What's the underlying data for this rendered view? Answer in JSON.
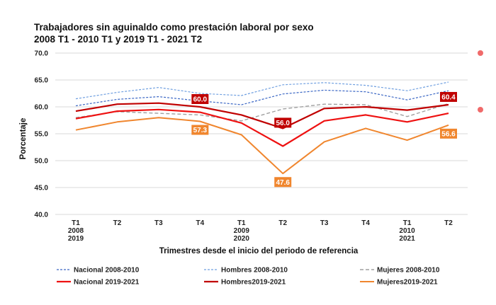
{
  "chart_data": {
    "type": "line",
    "title_line1": "Trabajadores sin aguinaldo como prestación laboral por sexo",
    "title_line2": "2008 T1 - 2010 T1 y 2019 T1 - 2021 T2",
    "xlabel": "Trimestres desde el inicio del periodo de referencia",
    "ylabel": "Porcentaje",
    "ylim": [
      40,
      70
    ],
    "yticks": [
      "40.0",
      "45.0",
      "50.0",
      "55.0",
      "60.0",
      "65.0",
      "70.0"
    ],
    "categories": [
      [
        "T1",
        "2008",
        "2019"
      ],
      [
        "T2"
      ],
      [
        "T3"
      ],
      [
        "T4"
      ],
      [
        "T1",
        "2009",
        "2020"
      ],
      [
        "T2"
      ],
      [
        "T3"
      ],
      [
        "T4"
      ],
      [
        "T1",
        "2010",
        "2021"
      ],
      [
        "T2"
      ]
    ],
    "series": [
      {
        "name": "Nacional 2008-2010",
        "color": "#3a66c4",
        "dash": "3,2",
        "width": 1.2,
        "values": [
          60.2,
          61.4,
          61.9,
          61.1,
          60.4,
          62.4,
          63.1,
          62.8,
          61.3,
          63.0
        ]
      },
      {
        "name": "Hombres  2008-2010",
        "color": "#6f9fe0",
        "dash": "3,2",
        "width": 1.2,
        "values": [
          61.5,
          62.7,
          63.6,
          62.5,
          62.1,
          64.1,
          64.5,
          64.0,
          63.0,
          64.6
        ]
      },
      {
        "name": "Mujeres 2008-2010",
        "color": "#a0a0a0",
        "dash": "5,3",
        "width": 1.4,
        "values": [
          58.0,
          59.1,
          58.8,
          58.5,
          57.4,
          59.6,
          60.5,
          60.4,
          58.2,
          60.6
        ]
      },
      {
        "name": "Nacional 2019-2021",
        "color": "#ee1111",
        "dash": "",
        "width": 2.2,
        "values": [
          57.8,
          59.2,
          59.5,
          59.0,
          57.0,
          52.7,
          57.4,
          58.5,
          57.2,
          58.8
        ]
      },
      {
        "name": "Hombres2019-2021",
        "color": "#c00000",
        "dash": "",
        "width": 2.2,
        "values": [
          59.2,
          60.5,
          60.7,
          60.0,
          58.5,
          56.0,
          59.7,
          60.0,
          59.4,
          60.4
        ]
      },
      {
        "name": "Mujeres2019-2021",
        "color": "#f0862e",
        "dash": "",
        "width": 2.0,
        "values": [
          55.7,
          57.2,
          58.0,
          57.3,
          54.8,
          47.6,
          53.5,
          56.0,
          53.8,
          56.6
        ]
      }
    ],
    "annotations": [
      {
        "text": "60.0",
        "series": 4,
        "index": 3,
        "color": "#c00000"
      },
      {
        "text": "56.0",
        "series": 4,
        "index": 5,
        "color": "#c00000"
      },
      {
        "text": "60.4",
        "series": 4,
        "index": 9,
        "color": "#c00000"
      },
      {
        "text": "57.3",
        "series": 5,
        "index": 3,
        "color": "#f0862e"
      },
      {
        "text": "47.6",
        "series": 5,
        "index": 5,
        "color": "#f0862e"
      },
      {
        "text": "56.6",
        "series": 5,
        "index": 9,
        "color": "#f0862e"
      }
    ],
    "legend_position": "bottom"
  }
}
